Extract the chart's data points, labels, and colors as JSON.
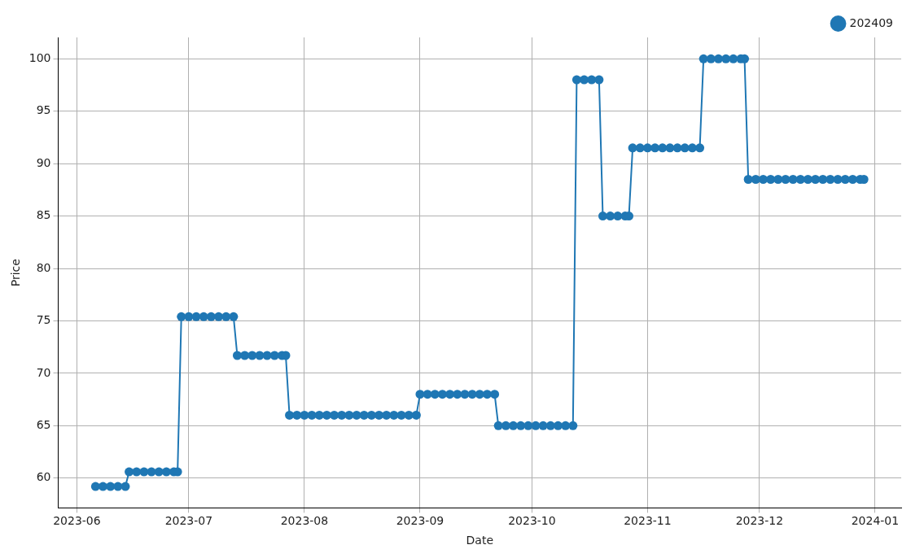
{
  "chart_data": {
    "type": "line",
    "xlabel": "Date",
    "ylabel": "Price",
    "xlim": [
      "2023-05-27",
      "2024-01-08"
    ],
    "xticks": [
      {
        "value": "2023-06-01",
        "label": "2023-06"
      },
      {
        "value": "2023-07-01",
        "label": "2023-07"
      },
      {
        "value": "2023-08-01",
        "label": "2023-08"
      },
      {
        "value": "2023-09-01",
        "label": "2023-09"
      },
      {
        "value": "2023-10-01",
        "label": "2023-10"
      },
      {
        "value": "2023-11-01",
        "label": "2023-11"
      },
      {
        "value": "2023-12-01",
        "label": "2023-12"
      },
      {
        "value": "2024-01-01",
        "label": "2024-01"
      }
    ],
    "ylim": [
      57.16,
      102.04
    ],
    "yticks": [
      60,
      65,
      70,
      75,
      80,
      85,
      90,
      95,
      100
    ],
    "grid": true,
    "legend": "top right",
    "marker": "circle",
    "line_style": "solid",
    "series": [
      {
        "name": "202409",
        "color": "#1f77b4",
        "x": [
          "2023-06-06",
          "2023-06-08",
          "2023-06-10",
          "2023-06-12",
          "2023-06-14",
          "2023-06-15",
          "2023-06-17",
          "2023-06-19",
          "2023-06-21",
          "2023-06-23",
          "2023-06-25",
          "2023-06-27",
          "2023-06-28",
          "2023-06-29",
          "2023-07-01",
          "2023-07-03",
          "2023-07-05",
          "2023-07-07",
          "2023-07-09",
          "2023-07-11",
          "2023-07-13",
          "2023-07-14",
          "2023-07-16",
          "2023-07-18",
          "2023-07-20",
          "2023-07-22",
          "2023-07-24",
          "2023-07-26",
          "2023-07-27",
          "2023-07-28",
          "2023-07-30",
          "2023-08-01",
          "2023-08-03",
          "2023-08-05",
          "2023-08-07",
          "2023-08-09",
          "2023-08-11",
          "2023-08-13",
          "2023-08-15",
          "2023-08-17",
          "2023-08-19",
          "2023-08-21",
          "2023-08-23",
          "2023-08-25",
          "2023-08-27",
          "2023-08-29",
          "2023-08-31",
          "2023-09-01",
          "2023-09-03",
          "2023-09-05",
          "2023-09-07",
          "2023-09-09",
          "2023-09-11",
          "2023-09-13",
          "2023-09-15",
          "2023-09-17",
          "2023-09-19",
          "2023-09-21",
          "2023-09-22",
          "2023-09-24",
          "2023-09-26",
          "2023-09-28",
          "2023-09-30",
          "2023-10-02",
          "2023-10-04",
          "2023-10-06",
          "2023-10-08",
          "2023-10-10",
          "2023-10-12",
          "2023-10-13",
          "2023-10-15",
          "2023-10-17",
          "2023-10-19",
          "2023-10-20",
          "2023-10-22",
          "2023-10-24",
          "2023-10-26",
          "2023-10-27",
          "2023-10-28",
          "2023-10-30",
          "2023-11-01",
          "2023-11-03",
          "2023-11-05",
          "2023-11-07",
          "2023-11-09",
          "2023-11-11",
          "2023-11-13",
          "2023-11-15",
          "2023-11-16",
          "2023-11-18",
          "2023-11-20",
          "2023-11-22",
          "2023-11-24",
          "2023-11-26",
          "2023-11-27",
          "2023-11-28",
          "2023-11-30",
          "2023-12-02",
          "2023-12-04",
          "2023-12-06",
          "2023-12-08",
          "2023-12-10",
          "2023-12-12",
          "2023-12-14",
          "2023-12-16",
          "2023-12-18",
          "2023-12-20",
          "2023-12-22",
          "2023-12-24",
          "2023-12-26",
          "2023-12-28",
          "2023-12-29"
        ],
        "values": [
          59.2,
          59.2,
          59.2,
          59.2,
          59.2,
          60.6,
          60.6,
          60.6,
          60.6,
          60.6,
          60.6,
          60.6,
          60.6,
          75.4,
          75.4,
          75.4,
          75.4,
          75.4,
          75.4,
          75.4,
          75.4,
          71.7,
          71.7,
          71.7,
          71.7,
          71.7,
          71.7,
          71.7,
          71.7,
          66,
          66,
          66,
          66,
          66,
          66,
          66,
          66,
          66,
          66,
          66,
          66,
          66,
          66,
          66,
          66,
          66,
          66,
          68,
          68,
          68,
          68,
          68,
          68,
          68,
          68,
          68,
          68,
          68,
          65,
          65,
          65,
          65,
          65,
          65,
          65,
          65,
          65,
          65,
          65,
          98,
          98,
          98,
          98,
          85,
          85,
          85,
          85,
          85,
          91.5,
          91.5,
          91.5,
          91.5,
          91.5,
          91.5,
          91.5,
          91.5,
          91.5,
          91.5,
          100,
          100,
          100,
          100,
          100,
          100,
          100,
          88.5,
          88.5,
          88.5,
          88.5,
          88.5,
          88.5,
          88.5,
          88.5,
          88.5,
          88.5,
          88.5,
          88.5,
          88.5,
          88.5,
          88.5,
          88.5,
          88.5
        ]
      }
    ]
  }
}
